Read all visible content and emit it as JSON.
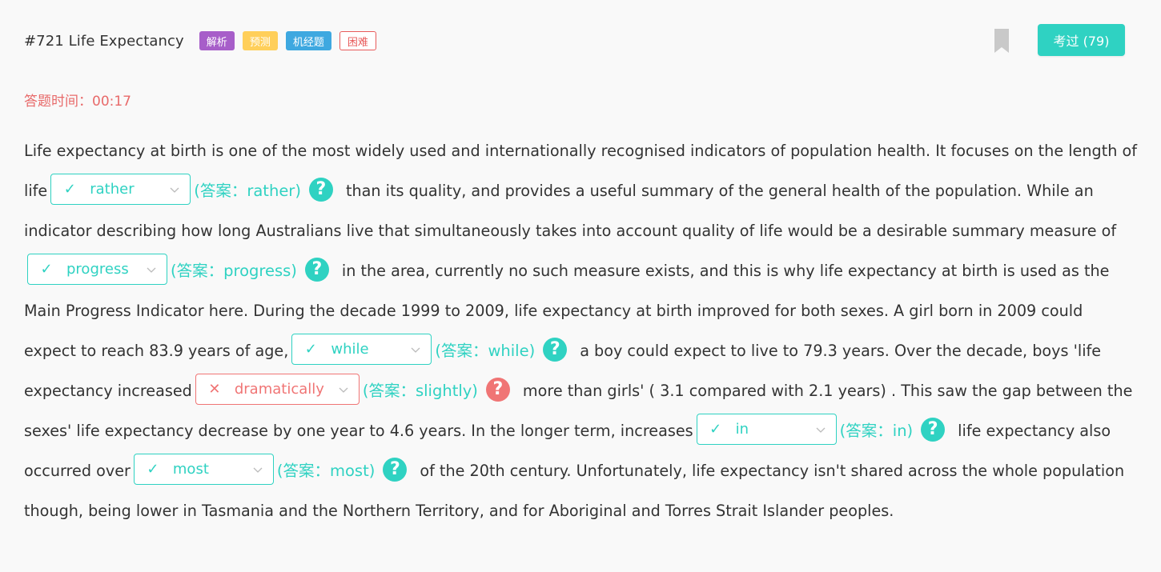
{
  "header": {
    "title": "#721 Life Expectancy",
    "tags": [
      "解析",
      "预测",
      "机经题",
      "困难"
    ],
    "exam_button": "考过 (79)"
  },
  "timer": {
    "label": "答题时间：",
    "value": "00:17"
  },
  "passage": {
    "seg0": "Life expectancy at birth is one of the most widely used and internationally recognised indicators of population health. It focuses on the length of life",
    "blank1": {
      "status": "correct",
      "value": "rather",
      "answer": "(答案：rather)"
    },
    "seg1": "than its quality, and provides a useful summary of the general health of the population. While an indicator describing how long Australians live that simultaneously takes into account quality of life would be a desirable summary measure of",
    "blank2": {
      "status": "correct",
      "value": "progress",
      "answer": "(答案：progress)"
    },
    "seg2": "in the area, currently no such measure exists, and this is why life expectancy at birth is used as the Main Progress Indicator here. During the decade 1999 to 2009, life expectancy at birth improved for both sexes. A girl born in 2009 could expect to reach 83.9 years of age,",
    "blank3": {
      "status": "correct",
      "value": "while",
      "answer": "(答案：while)"
    },
    "seg3": "a boy could expect to live to 79.3 years. Over the decade, boys 'life expectancy increased",
    "blank4": {
      "status": "wrong",
      "value": "dramatically",
      "answer": "(答案：slightly)"
    },
    "seg4": "more than girls' ( 3.1 compared with 2.1 years) . This saw the gap between the sexes' life expectancy decrease by one year to 4.6 years. In the longer term, increases",
    "blank5": {
      "status": "correct",
      "value": "in",
      "answer": "(答案：in)"
    },
    "seg5": "life expectancy also occurred over",
    "blank6": {
      "status": "correct",
      "value": "most",
      "answer": "(答案：most)"
    },
    "seg6": "of the 20th century. Unfortunately, life expectancy isn't shared across the whole population though, being lower in Tasmania and the Northern Territory, and for Aboriginal and Torres Strait Islander peoples."
  },
  "icons": {
    "correct": "check-icon",
    "wrong": "x-icon",
    "help": "question-circle-icon",
    "dropdown": "chevron-down-icon",
    "bookmark": "bookmark-icon"
  },
  "colors": {
    "accent": "#2fd2c2",
    "error": "#f07575",
    "timer": "#e86a6a",
    "tag_analysis": "#a75ec9",
    "tag_predict": "#ffcf5a",
    "tag_machine": "#3ea8e0"
  }
}
